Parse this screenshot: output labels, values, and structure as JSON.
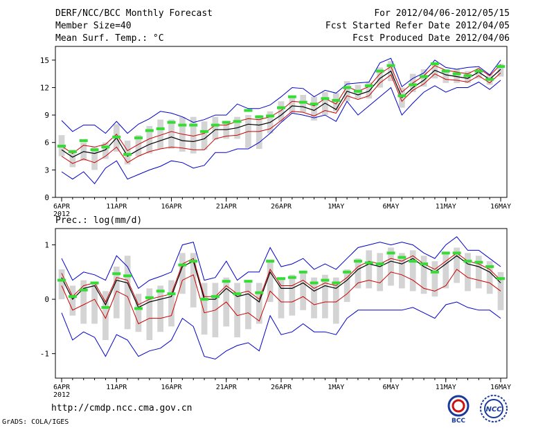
{
  "header": {
    "title": "DERF/NCC/BCC Monthly Forecast",
    "member_size": "Member Size=40",
    "variable": "Mean Surf. Temp.: °C",
    "period": "For 2012/04/06-2012/05/15",
    "start_date": "Fcst Started Refer Date 2012/04/05",
    "produced_date": "Fcst Produced Date 2012/04/06"
  },
  "footer": {
    "url": "http://cmdp.ncc.cma.gov.cn",
    "credit": "GrADS: COLA/IGES",
    "logo_left_text": "BCC",
    "logo_right_text": "NCC"
  },
  "colors": {
    "mean": "#000000",
    "inner_band": "#cc0000",
    "outer_band": "#0000cc",
    "box": "#d4d4d4",
    "observed": "#33dd33"
  },
  "chart_data": [
    {
      "type": "line",
      "title": "Mean Surf. Temp.: °C",
      "ylabel": "°C",
      "ylim": [
        0,
        16.5
      ],
      "yticks": [
        0,
        3,
        6,
        9,
        12,
        15
      ],
      "xlabels": [
        {
          "day": 0,
          "label": "6APR"
        },
        {
          "day": 5,
          "label": "11APR"
        },
        {
          "day": 10,
          "label": "16APR"
        },
        {
          "day": 15,
          "label": "21APR"
        },
        {
          "day": 20,
          "label": "26APR"
        },
        {
          "day": 25,
          "label": "1MAY"
        },
        {
          "day": 30,
          "label": "6MAY"
        },
        {
          "day": 35,
          "label": "11MAY"
        },
        {
          "day": 40,
          "label": "16MAY"
        }
      ],
      "xyear": "2012",
      "series": [
        {
          "name": "ensemble mean",
          "values": [
            5.2,
            4.4,
            5.0,
            4.8,
            5.2,
            6.5,
            4.5,
            5.2,
            5.8,
            6.2,
            6.6,
            6.2,
            6.1,
            6.4,
            7.4,
            7.4,
            7.6,
            8.0,
            7.9,
            8.2,
            9.0,
            10.0,
            9.9,
            9.5,
            10.3,
            9.6,
            11.6,
            11.2,
            11.6,
            13.0,
            13.8,
            10.9,
            12.0,
            12.8,
            13.9,
            13.4,
            13.2,
            13.0,
            13.7,
            12.9,
            14.0
          ]
        },
        {
          "name": "upper red",
          "values": [
            5.6,
            4.8,
            5.7,
            5.5,
            5.8,
            6.9,
            5.1,
            5.8,
            6.4,
            6.8,
            7.2,
            6.9,
            6.7,
            7.0,
            7.9,
            7.9,
            8.3,
            8.6,
            8.5,
            8.8,
            9.5,
            10.5,
            10.4,
            10.0,
            10.8,
            10.2,
            12.1,
            11.6,
            12.1,
            13.5,
            14.3,
            11.5,
            12.5,
            13.3,
            14.4,
            13.9,
            13.7,
            13.5,
            14.1,
            13.3,
            14.5
          ]
        },
        {
          "name": "lower red",
          "values": [
            4.5,
            3.7,
            4.2,
            3.8,
            4.5,
            5.5,
            3.8,
            4.5,
            5.0,
            5.3,
            5.5,
            5.4,
            5.2,
            5.2,
            6.4,
            6.7,
            6.8,
            7.2,
            7.2,
            7.5,
            8.4,
            9.4,
            9.3,
            8.9,
            9.5,
            9.2,
            11.1,
            10.7,
            11.1,
            12.5,
            13.4,
            10.5,
            11.7,
            12.4,
            13.5,
            12.9,
            12.8,
            12.6,
            13.3,
            12.5,
            13.6
          ]
        },
        {
          "name": "upper blue",
          "values": [
            8.4,
            7.2,
            7.9,
            7.9,
            7.0,
            8.3,
            7.0,
            8.0,
            8.6,
            9.4,
            9.2,
            8.8,
            8.2,
            8.5,
            9.0,
            9.0,
            10.2,
            9.7,
            9.7,
            10.1,
            11.0,
            12.0,
            11.9,
            11.0,
            11.7,
            11.4,
            12.4,
            12.5,
            12.6,
            14.7,
            15.2,
            12.1,
            13.0,
            13.6,
            15.0,
            14.2,
            14.0,
            14.2,
            14.3,
            13.4,
            15.0
          ]
        },
        {
          "name": "lower blue",
          "values": [
            2.8,
            2.0,
            2.8,
            1.5,
            3.2,
            4.0,
            2.0,
            2.5,
            3.0,
            3.4,
            4.0,
            3.8,
            3.2,
            3.5,
            4.9,
            4.9,
            5.3,
            5.3,
            6.0,
            7.0,
            8.2,
            9.2,
            9.0,
            8.7,
            9.0,
            8.3,
            10.5,
            9.0,
            10.0,
            11.0,
            12.0,
            9.0,
            10.3,
            11.5,
            12.2,
            11.5,
            12.0,
            12.0,
            12.6,
            11.8,
            12.8
          ]
        },
        {
          "name": "box top",
          "values": [
            6.8,
            5.2,
            6.0,
            5.5,
            6.0,
            8.0,
            6.2,
            6.8,
            7.8,
            8.5,
            8.5,
            8.8,
            8.8,
            8.3,
            8.8,
            8.2,
            8.8,
            9.0,
            9.0,
            9.4,
            10.5,
            11.0,
            11.2,
            11.0,
            11.5,
            11.4,
            12.7,
            12.3,
            12.6,
            14.2,
            14.9,
            12.0,
            13.5,
            14.0,
            14.5,
            14.0,
            14.0,
            13.8,
            14.0,
            13.5,
            14.6
          ]
        },
        {
          "name": "box bottom",
          "values": [
            4.5,
            3.3,
            4.0,
            3.0,
            4.2,
            5.0,
            3.6,
            4.5,
            4.8,
            5.3,
            5.3,
            5.0,
            4.8,
            5.2,
            6.3,
            6.4,
            6.4,
            5.4,
            5.3,
            7.0,
            8.3,
            9.2,
            9.3,
            8.4,
            9.0,
            9.4,
            10.5,
            10.8,
            10.8,
            12.0,
            12.7,
            9.8,
            11.5,
            12.1,
            13.0,
            12.5,
            12.5,
            12.5,
            13.0,
            12.3,
            13.2
          ]
        },
        {
          "name": "observed",
          "values": [
            5.6,
            5.0,
            6.2,
            5.2,
            5.5,
            6.6,
            4.7,
            6.5,
            7.3,
            7.5,
            8.2,
            7.9,
            7.9,
            7.2,
            7.9,
            8.2,
            8.3,
            9.5,
            8.8,
            8.9,
            9.8,
            11.0,
            10.4,
            10.2,
            10.8,
            10.6,
            12.0,
            11.6,
            12.2,
            13.8,
            14.4,
            11.1,
            12.3,
            13.2,
            14.6,
            13.8,
            13.5,
            13.3,
            13.8,
            12.9,
            14.3
          ]
        }
      ]
    },
    {
      "type": "line",
      "title": "Prec.: log(mm/d)",
      "ylabel": "log(mm/d)",
      "ylim": [
        -1.45,
        1.3
      ],
      "yticks": [
        -1,
        0,
        1
      ],
      "xlabels": [
        {
          "day": 0,
          "label": "6APR"
        },
        {
          "day": 5,
          "label": "11APR"
        },
        {
          "day": 10,
          "label": "16APR"
        },
        {
          "day": 15,
          "label": "21APR"
        },
        {
          "day": 20,
          "label": "26APR"
        },
        {
          "day": 25,
          "label": "1MAY"
        },
        {
          "day": 30,
          "label": "6MAY"
        },
        {
          "day": 35,
          "label": "11MAY"
        },
        {
          "day": 40,
          "label": "16MAY"
        }
      ],
      "xyear": "2012",
      "series": [
        {
          "name": "ensemble mean",
          "values": [
            0.4,
            0.0,
            0.2,
            0.25,
            -0.1,
            0.35,
            0.3,
            -0.15,
            -0.05,
            0.0,
            0.05,
            0.6,
            0.7,
            0.0,
            0.0,
            0.2,
            0.05,
            0.1,
            -0.05,
            0.5,
            0.2,
            0.2,
            0.3,
            0.15,
            0.25,
            0.2,
            0.35,
            0.55,
            0.65,
            0.6,
            0.7,
            0.65,
            0.75,
            0.6,
            0.5,
            0.65,
            0.8,
            0.65,
            0.6,
            0.5,
            0.3
          ]
        },
        {
          "name": "upper red",
          "values": [
            0.48,
            0.05,
            0.25,
            0.3,
            -0.05,
            0.4,
            0.35,
            -0.1,
            0.0,
            0.05,
            0.1,
            0.65,
            0.75,
            0.05,
            0.05,
            0.25,
            0.1,
            0.15,
            0.0,
            0.55,
            0.25,
            0.25,
            0.35,
            0.2,
            0.3,
            0.25,
            0.4,
            0.6,
            0.7,
            0.65,
            0.75,
            0.7,
            0.8,
            0.65,
            0.55,
            0.7,
            0.85,
            0.7,
            0.65,
            0.55,
            0.35
          ]
        },
        {
          "name": "lower red",
          "values": [
            0.25,
            -0.2,
            -0.1,
            0.0,
            -0.35,
            0.15,
            0.05,
            -0.45,
            -0.35,
            -0.35,
            -0.3,
            0.35,
            0.45,
            -0.25,
            -0.2,
            -0.05,
            -0.3,
            -0.25,
            -0.4,
            0.15,
            -0.05,
            -0.05,
            0.05,
            -0.1,
            -0.05,
            -0.05,
            0.1,
            0.3,
            0.35,
            0.3,
            0.5,
            0.45,
            0.35,
            0.2,
            0.15,
            0.25,
            0.55,
            0.4,
            0.35,
            0.3,
            0.15
          ]
        },
        {
          "name": "upper blue",
          "values": [
            0.75,
            0.35,
            0.5,
            0.45,
            0.35,
            0.8,
            0.6,
            0.2,
            0.35,
            0.42,
            0.5,
            1.0,
            1.05,
            0.35,
            0.4,
            0.7,
            0.35,
            0.5,
            0.5,
            0.95,
            0.6,
            0.65,
            0.75,
            0.55,
            0.65,
            0.55,
            0.75,
            0.95,
            1.0,
            1.05,
            1.0,
            1.05,
            1.0,
            0.85,
            0.75,
            1.0,
            1.15,
            0.9,
            0.9,
            0.75,
            0.6
          ]
        },
        {
          "name": "lower blue",
          "values": [
            -0.25,
            -0.75,
            -0.6,
            -0.7,
            -1.05,
            -0.65,
            -0.75,
            -1.05,
            -0.95,
            -0.9,
            -0.75,
            -0.35,
            -0.5,
            -1.05,
            -1.1,
            -0.95,
            -0.85,
            -0.8,
            -0.95,
            -0.3,
            -0.65,
            -0.6,
            -0.45,
            -0.6,
            -0.6,
            -0.65,
            -0.35,
            -0.2,
            -0.2,
            -0.2,
            -0.2,
            -0.2,
            -0.15,
            -0.25,
            -0.35,
            -0.1,
            -0.05,
            -0.15,
            -0.2,
            -0.2,
            -0.35
          ]
        },
        {
          "name": "box top",
          "values": [
            0.55,
            0.25,
            0.35,
            0.3,
            0.15,
            0.6,
            0.8,
            0.1,
            0.2,
            0.25,
            0.35,
            0.85,
            0.85,
            0.3,
            0.3,
            0.4,
            0.3,
            0.3,
            0.3,
            0.7,
            0.4,
            0.45,
            0.5,
            0.4,
            0.45,
            0.4,
            0.55,
            0.75,
            0.9,
            0.85,
            0.95,
            0.85,
            0.9,
            0.8,
            0.7,
            0.85,
            0.95,
            0.85,
            0.8,
            0.7,
            0.5
          ]
        },
        {
          "name": "box bottom",
          "values": [
            0.0,
            -0.3,
            -0.45,
            -0.45,
            -0.75,
            -0.35,
            -0.55,
            -0.6,
            -0.75,
            -0.6,
            -0.5,
            0.1,
            -0.15,
            -0.65,
            -0.7,
            -0.5,
            -0.7,
            -0.55,
            -0.45,
            -0.05,
            -0.35,
            -0.3,
            -0.2,
            -0.35,
            -0.35,
            -0.45,
            -0.05,
            0.2,
            0.2,
            0.15,
            0.25,
            0.2,
            0.15,
            0.1,
            0.05,
            0.2,
            0.3,
            0.15,
            0.2,
            0.1,
            -0.2
          ]
        },
        {
          "name": "observed",
          "values": [
            0.35,
            0.05,
            0.17,
            0.3,
            -0.15,
            0.47,
            0.43,
            -0.17,
            0.03,
            0.15,
            0.1,
            0.63,
            0.7,
            0.0,
            0.05,
            0.33,
            0.1,
            0.33,
            0.12,
            0.7,
            0.38,
            0.4,
            0.5,
            0.3,
            0.35,
            0.3,
            0.5,
            0.7,
            0.67,
            0.65,
            0.85,
            0.77,
            0.7,
            0.65,
            0.5,
            0.85,
            0.85,
            0.7,
            0.68,
            0.6,
            0.38
          ]
        }
      ]
    }
  ]
}
